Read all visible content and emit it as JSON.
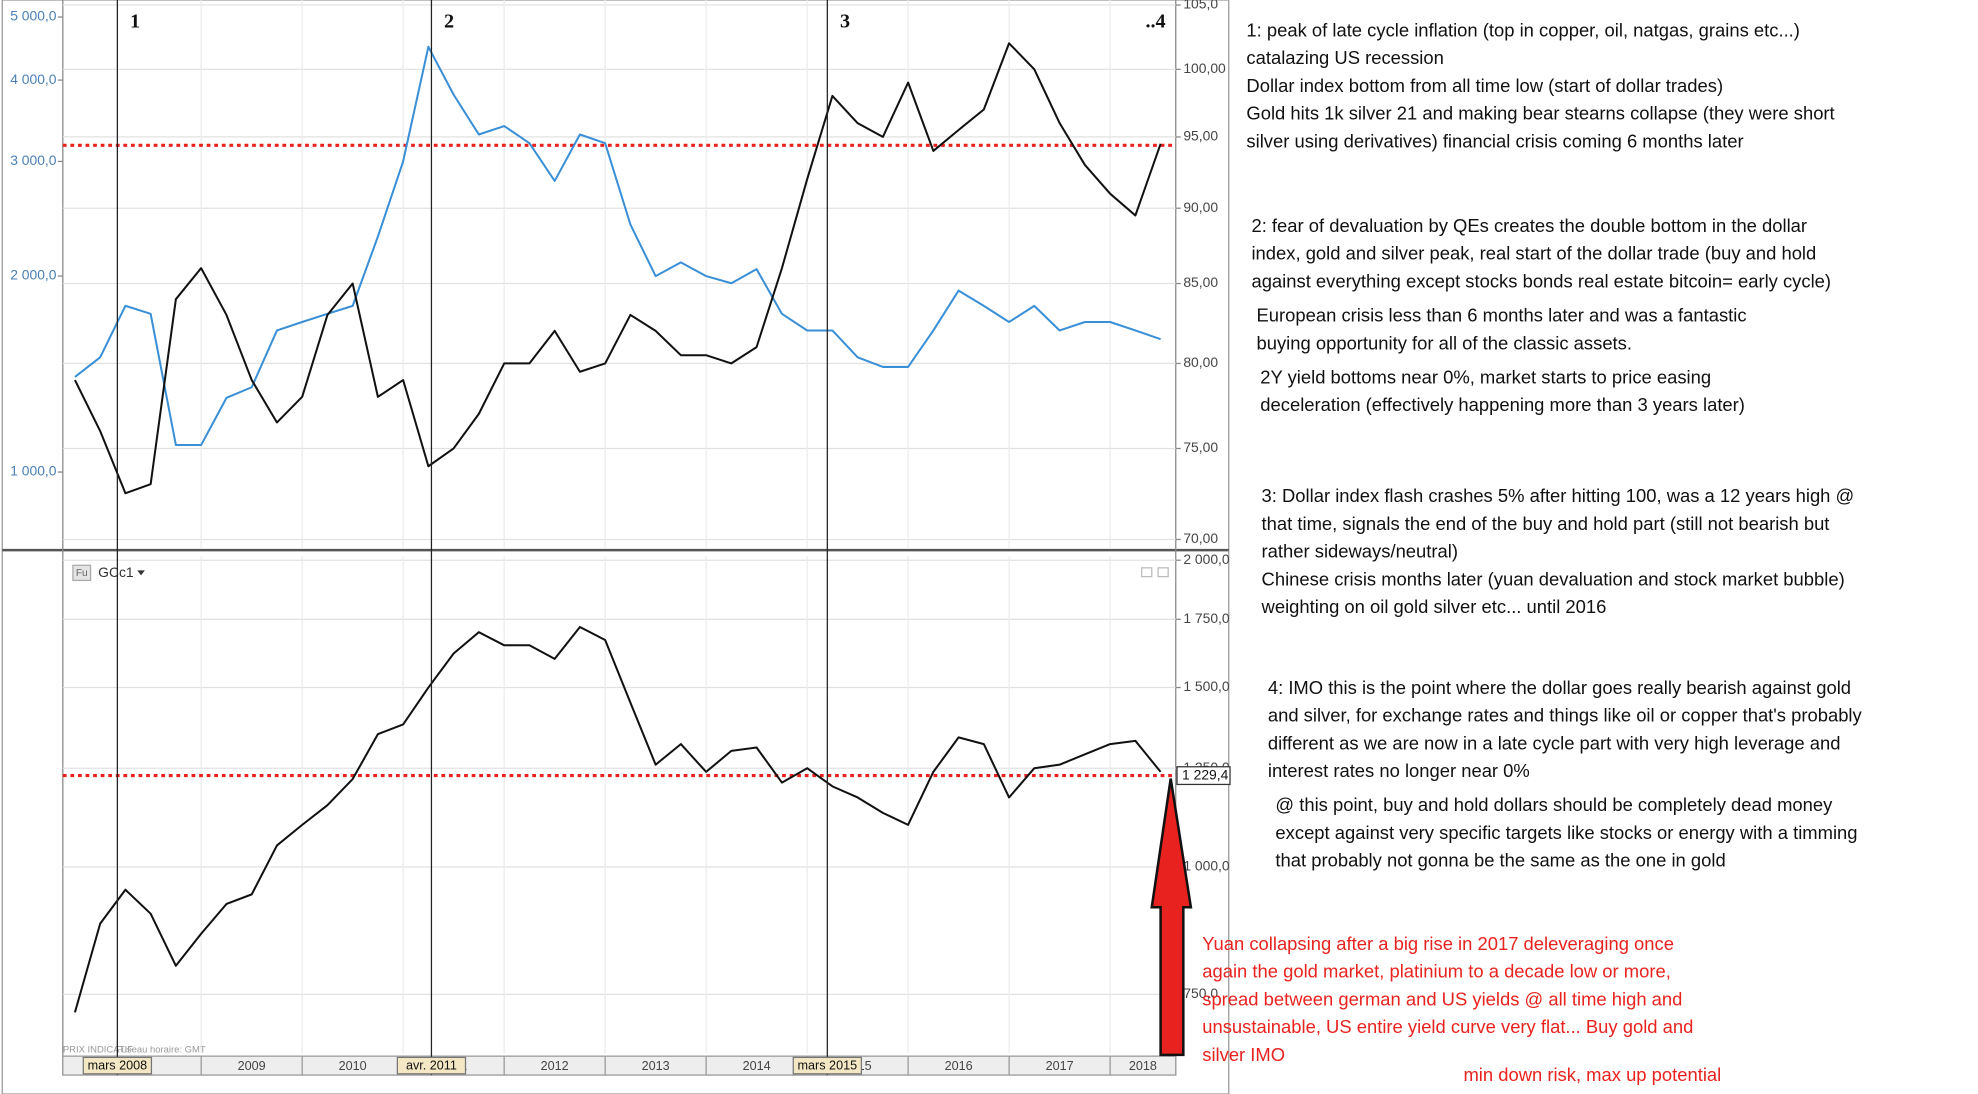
{
  "chart_data": [
    {
      "type": "line",
      "log_scale": true,
      "grid": true,
      "xlim": [
        2007.63,
        2018.65
      ],
      "x": [
        2007.75,
        2008,
        2008.25,
        2008.5,
        2008.75,
        2009,
        2009.25,
        2009.5,
        2009.75,
        2010,
        2010.25,
        2010.5,
        2010.75,
        2011,
        2011.25,
        2011.5,
        2011.75,
        2012,
        2012.25,
        2012.5,
        2012.75,
        2013,
        2013.25,
        2013.5,
        2013.75,
        2014,
        2014.25,
        2014.5,
        2014.75,
        2015,
        2015.25,
        2015.5,
        2015.75,
        2016,
        2016.25,
        2016.5,
        2016.75,
        2017,
        2017.25,
        2017.5,
        2017.75,
        2018,
        2018.25,
        2018.5
      ],
      "ylim": [
        762,
        5310
      ],
      "yticks": [
        {
          "value": 1000,
          "label": "1 000,0"
        },
        {
          "value": 2000,
          "label": "2 000,0"
        },
        {
          "value": 3000,
          "label": "3 000,0"
        },
        {
          "value": 4000,
          "label": "4 000,0"
        },
        {
          "value": 5000,
          "label": "5 000,0"
        }
      ],
      "y2lim": [
        69.5,
        105.4
      ],
      "y2ticks": [
        {
          "value": 70,
          "label": "70,00"
        },
        {
          "value": 75,
          "label": "75,00"
        },
        {
          "value": 80,
          "label": "80,00"
        },
        {
          "value": 85,
          "label": "85,00"
        },
        {
          "value": 90,
          "label": "90,00"
        },
        {
          "value": 95,
          "label": "95,00"
        },
        {
          "value": 100,
          "label": "100,00"
        },
        {
          "value": 105,
          "label": "105,0"
        }
      ],
      "series": [
        {
          "color": "#3a8fd6",
          "values": [
            1400,
            1500,
            1800,
            1750,
            1100,
            1100,
            1300,
            1350,
            1650,
            1700,
            1750,
            1800,
            2300,
            3000,
            4500,
            3800,
            3300,
            3400,
            3200,
            2800,
            3300,
            3200,
            2400,
            2000,
            2100,
            2000,
            1950,
            2050,
            1750,
            1650,
            1650,
            1500,
            1450,
            1450,
            1650,
            1900,
            1800,
            1700,
            1800,
            1650,
            1700,
            1700,
            1650,
            1600
          ]
        },
        {
          "color": "#111111",
          "axis": "y2",
          "values": [
            79,
            76,
            72.5,
            73,
            84,
            86,
            83,
            79,
            76.5,
            78,
            83,
            85,
            78,
            79,
            74,
            75,
            77,
            80,
            80,
            82,
            79.5,
            80,
            83,
            82,
            80.5,
            80.5,
            80,
            81,
            86,
            92,
            98,
            96,
            95,
            99,
            94,
            95.5,
            97,
            102,
            100,
            96,
            93,
            91,
            89.5,
            94.5
          ]
        }
      ],
      "hline": {
        "value": 94.4,
        "axis": "y2",
        "color": "#e8231f"
      }
    },
    {
      "type": "line",
      "log_scale": true,
      "grid": true,
      "title": "GCc1",
      "xlim": [
        2007.63,
        2018.65
      ],
      "x": [
        2007.75,
        2008,
        2008.25,
        2008.5,
        2008.75,
        2009,
        2009.25,
        2009.5,
        2009.75,
        2010,
        2010.25,
        2010.5,
        2010.75,
        2011,
        2011.25,
        2011.5,
        2011.75,
        2012,
        2012.25,
        2012.5,
        2012.75,
        2013,
        2013.25,
        2013.5,
        2013.75,
        2014,
        2014.25,
        2014.5,
        2014.75,
        2015,
        2015.25,
        2015.5,
        2015.75,
        2016,
        2016.25,
        2016.5,
        2016.75,
        2017,
        2017.25,
        2017.5,
        2017.75,
        2018,
        2018.25,
        2018.5
      ],
      "xticks": [
        2009,
        2010,
        2011,
        2012,
        2013,
        2014,
        2015,
        2016,
        2017,
        2018
      ],
      "ylim": [
        656,
        2017
      ],
      "yticks": [
        {
          "value": 750,
          "label": "750,0"
        },
        {
          "value": 1000,
          "label": "1 000,0"
        },
        {
          "value": 1250,
          "label": "1 250,0"
        },
        {
          "value": 1500,
          "label": "1 500,0"
        },
        {
          "value": 1750,
          "label": "1 750,0"
        },
        {
          "value": 2000,
          "label": "2 000,0"
        }
      ],
      "series": [
        {
          "color": "#111111",
          "values": [
            720,
            880,
            950,
            900,
            800,
            860,
            920,
            940,
            1050,
            1100,
            1150,
            1220,
            1350,
            1380,
            1500,
            1620,
            1700,
            1650,
            1650,
            1600,
            1720,
            1670,
            1450,
            1260,
            1320,
            1240,
            1300,
            1310,
            1210,
            1250,
            1200,
            1170,
            1130,
            1100,
            1240,
            1340,
            1320,
            1170,
            1250,
            1260,
            1290,
            1320,
            1330,
            1240
          ]
        }
      ],
      "hline": {
        "value": 1229.4,
        "label": "1 229,4",
        "color": "#e8231f"
      }
    }
  ],
  "icon_text": "Fu",
  "footer": {
    "source": "PRIX INDICATIF",
    "timezone": "Fuseau horaire: GMT"
  },
  "events": [
    {
      "x": 2008.17,
      "label": "1",
      "date_label": "mars 2008"
    },
    {
      "x": 2011.28,
      "label": "2",
      "date_label": "avr. 2011"
    },
    {
      "x": 2015.2,
      "label": "3",
      "date_label": "mars 2015"
    },
    {
      "x": 2018.45,
      "label": "..4"
    }
  ],
  "notes": [
    [
      "1: peak of late cycle inflation (top in copper, oil, natgas, grains etc...)",
      "catalazing US recession",
      "Dollar index bottom from all time low (start of dollar trades)",
      "Gold hits 1k silver 21 and making bear stearns collapse (they were short",
      "silver using derivatives)  financial crisis coming 6 months later"
    ],
    [
      "2: fear of devaluation by QEs creates the double bottom in the dollar",
      "index, gold and silver peak, real start of the dollar trade (buy and hold",
      "against everything except stocks bonds real estate bitcoin= early cycle)"
    ],
    [
      "European crisis less than 6 months later and was a fantastic",
      "buying opportunity for all of the classic assets."
    ],
    [
      "2Y yield bottoms near 0%, market starts to price easing",
      "deceleration (effectively happening more than 3 years later)"
    ],
    [
      "3: Dollar index flash crashes 5% after hitting 100, was a 12 years high @",
      "that time, signals the end of the buy and hold part (still not bearish but",
      "rather sideways/neutral)",
      "Chinese crisis months later (yuan devaluation and stock market bubble)",
      "weighting on oil gold silver etc... until 2016"
    ],
    [
      "4: IMO this is the point where the dollar goes really bearish against gold",
      "and silver, for exchange rates and things like oil or copper that's probably",
      "different as we are now in a late cycle part with very high leverage and",
      "interest rates no longer near 0%"
    ],
    [
      "@ this point, buy and hold dollars should be completely dead money",
      "except against very specific targets like stocks or energy with a timming",
      "that probably not gonna be the same as the one in gold"
    ]
  ],
  "red_note": [
    "Yuan collapsing after a big rise in 2017 deleveraging once",
    "again the gold market, platinium to a decade low or more,",
    "spread between german and US yields @ all time high and",
    "unsustainable, US entire yield curve very flat... Buy gold and",
    "silver IMO"
  ],
  "red_footer": "min down risk, max up potential"
}
